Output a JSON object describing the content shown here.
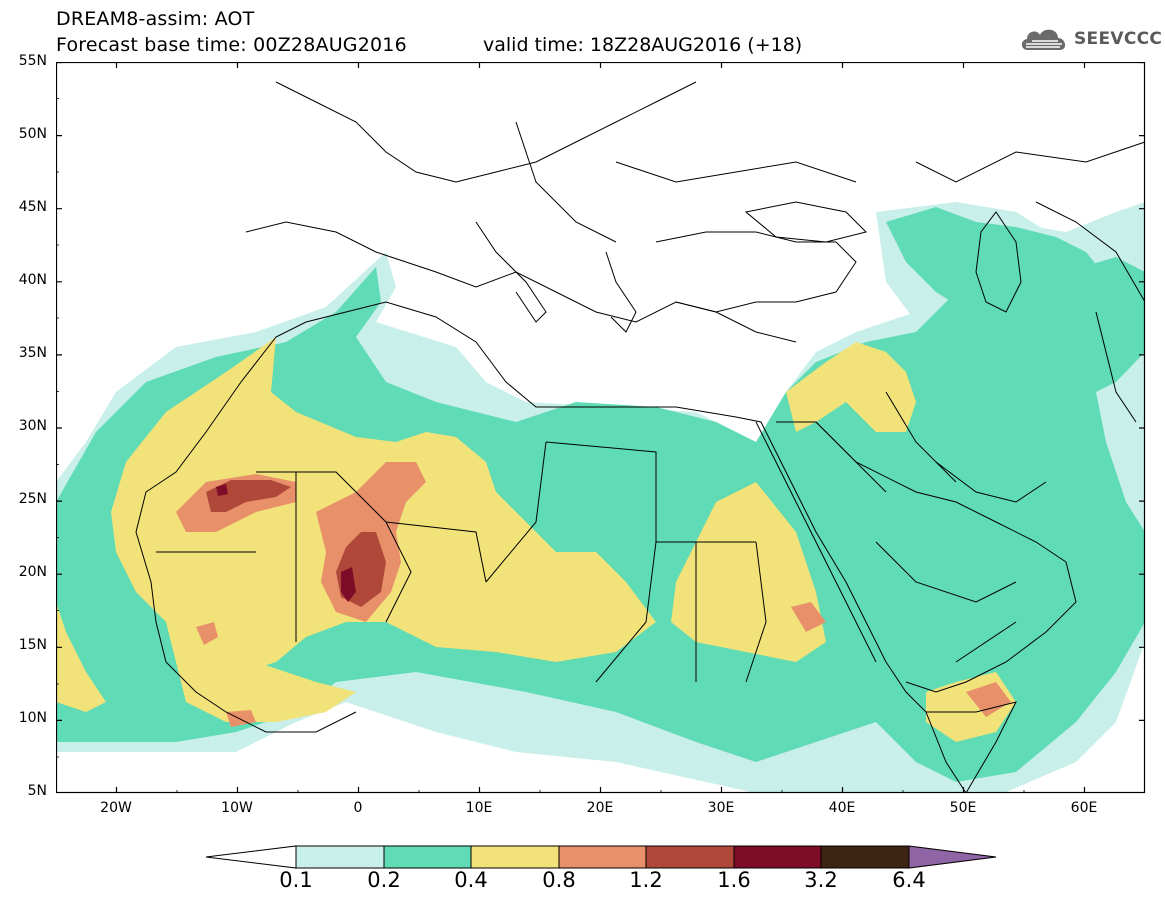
{
  "header": {
    "title_line1": "DREAM8-assim: AOT",
    "title_line2": "Forecast base time: 00Z28AUG2016",
    "valid_time": "valid time: 18Z28AUG2016 (+18)"
  },
  "logo": {
    "text": "SEEVCCC",
    "icon": "cloud-icon"
  },
  "axes": {
    "lon_range": [
      -25,
      65
    ],
    "lat_range": [
      5,
      55
    ],
    "lat_ticks": [
      "55N",
      "50N",
      "45N",
      "40N",
      "35N",
      "30N",
      "25N",
      "20N",
      "15N",
      "10N",
      "5N"
    ],
    "lon_ticks": [
      "20W",
      "10W",
      "0",
      "10E",
      "20E",
      "30E",
      "40E",
      "50E",
      "60E"
    ]
  },
  "colorbar": {
    "labels": [
      "0.1",
      "0.2",
      "0.4",
      "0.8",
      "1.2",
      "1.6",
      "3.2",
      "6.4"
    ],
    "colors": [
      "#ffffff",
      "#c8efe9",
      "#5fdbb5",
      "#f2e27a",
      "#e8906a",
      "#b0483a",
      "#7e0c29",
      "#3e2412",
      "#8f65a5"
    ]
  }
}
